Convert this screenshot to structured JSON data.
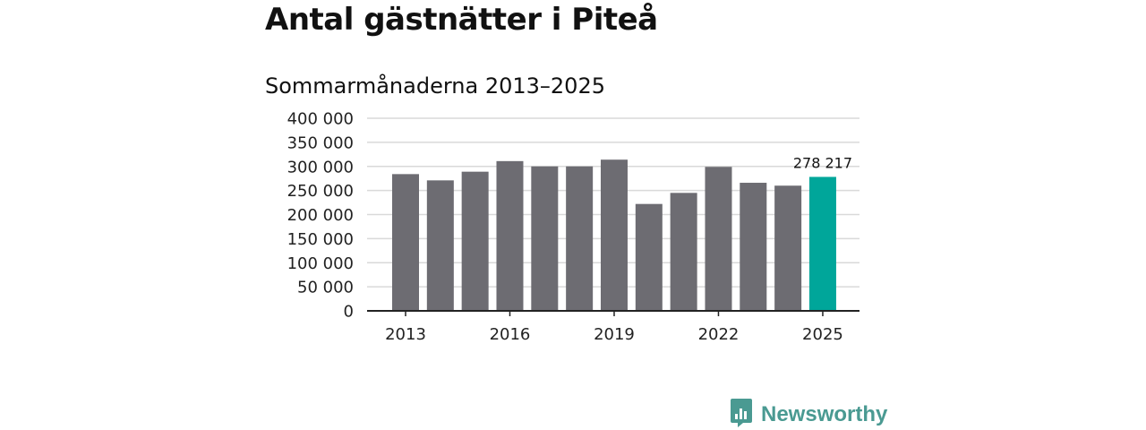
{
  "chart_data": {
    "type": "bar",
    "title": "Antal gästnätter i Piteå",
    "subtitle": "Sommarmånaderna 2013–2025",
    "categories": [
      "2013",
      "2014",
      "2015",
      "2016",
      "2017",
      "2018",
      "2019",
      "2020",
      "2021",
      "2022",
      "2023",
      "2024",
      "2025"
    ],
    "values": [
      284000,
      271000,
      289000,
      311000,
      300000,
      300000,
      314000,
      222000,
      245000,
      299000,
      266000,
      260000,
      278217
    ],
    "ylim": [
      0,
      400000
    ],
    "yticks": [
      0,
      50000,
      100000,
      150000,
      200000,
      250000,
      300000,
      350000,
      400000
    ],
    "ytick_labels": [
      "0",
      "50 000",
      "100 000",
      "150 000",
      "200 000",
      "250 000",
      "300 000",
      "350 000",
      "400 000"
    ],
    "xtick_labels": [
      "2013",
      "2016",
      "2019",
      "2022",
      "2025"
    ],
    "highlight_category": "2025",
    "highlight_label": "278 217",
    "grid": true,
    "legend": "none",
    "colors": {
      "bar": "#6d6c72",
      "highlight": "#00a69a",
      "grid": "#d9d9d9",
      "axis": "#222222"
    }
  },
  "brand": {
    "name": "Newsworthy",
    "logo_icon": "chart-speech-bubble-icon",
    "color": "#4a9a92"
  }
}
